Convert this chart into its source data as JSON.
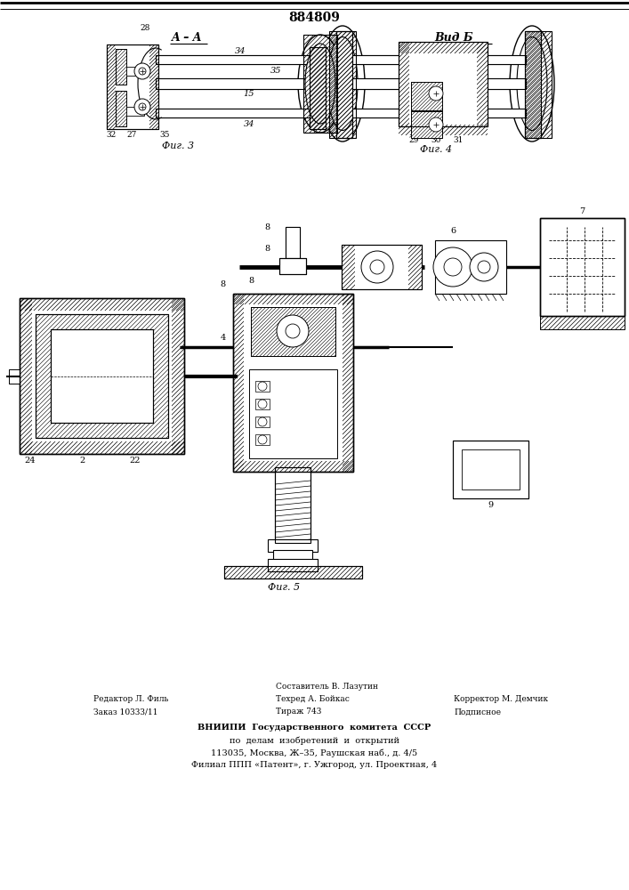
{
  "patent_number": "884809",
  "background_color": "#ffffff",
  "fig3_label": "Фиг. 3",
  "fig4_label": "Фиг. 4",
  "fig5_label": "Фиг. 5",
  "section_aa_label": "A – A",
  "view_b_label": "Вид Б"
}
